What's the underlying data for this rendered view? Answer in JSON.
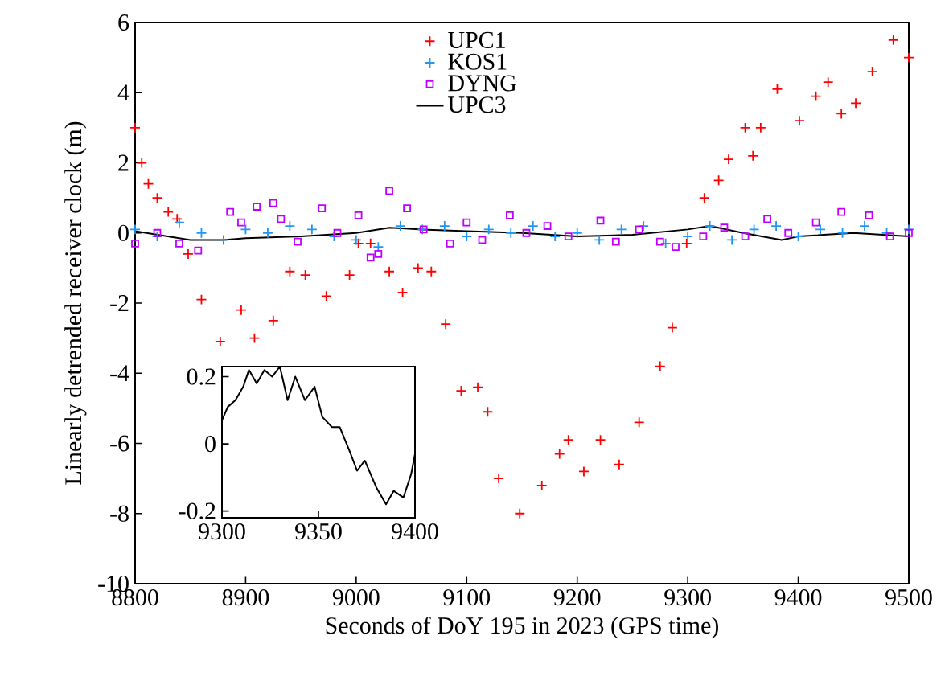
{
  "chart_data": [
    {
      "type": "scatter",
      "xlabel": "Seconds of DoY 195 in 2023 (GPS time)",
      "ylabel": "Linearly detrended receiver clock (m)",
      "xlim": [
        8800,
        9500
      ],
      "ylim": [
        -10,
        6
      ],
      "xticks": [
        8800,
        8900,
        9000,
        9100,
        9200,
        9300,
        9400,
        9500
      ],
      "yticks": [
        -10,
        -8,
        -6,
        -4,
        -2,
        0,
        2,
        4,
        6
      ],
      "legend": "top",
      "series": [
        {
          "name": "UPC1",
          "color": "#ff0000",
          "marker": "cross",
          "x": [
            8800,
            8806,
            8812,
            8820,
            8830,
            8838,
            8848,
            8860,
            8877,
            8896,
            8908,
            8925,
            8940,
            8954,
            8973,
            8994,
            9002,
            9013,
            9030,
            9042,
            9056,
            9068,
            9081,
            9095,
            9110,
            9119,
            9129,
            9148,
            9168,
            9184,
            9192,
            9206,
            9221,
            9238,
            9256,
            9275,
            9286,
            9299,
            9315,
            9328,
            9337,
            9352,
            9359,
            9366,
            9381,
            9401,
            9416,
            9427,
            9439,
            9452,
            9467,
            9486,
            9500
          ],
          "values": [
            3.0,
            2.0,
            1.4,
            1.0,
            0.6,
            0.4,
            -0.6,
            -1.9,
            -3.1,
            -2.2,
            -3.0,
            -2.5,
            -1.1,
            -1.2,
            -1.8,
            -1.2,
            -0.3,
            -0.3,
            -1.1,
            -1.7,
            -1.0,
            -1.1,
            -2.6,
            -4.5,
            -4.4,
            -5.1,
            -7.0,
            -8.0,
            -7.2,
            -6.3,
            -5.9,
            -6.8,
            -5.9,
            -6.6,
            -5.4,
            -3.8,
            -2.7,
            -0.3,
            1.0,
            1.5,
            2.1,
            3.0,
            2.2,
            3.0,
            4.1,
            3.2,
            3.9,
            4.3,
            3.4,
            3.7,
            4.6,
            5.5,
            5.0
          ]
        },
        {
          "name": "KOS1",
          "color": "#2196f3",
          "marker": "cross",
          "x": [
            8800,
            8820,
            8840,
            8860,
            8880,
            8900,
            8920,
            8940,
            8960,
            8980,
            9000,
            9020,
            9040,
            9060,
            9080,
            9100,
            9120,
            9140,
            9160,
            9180,
            9200,
            9220,
            9240,
            9260,
            9280,
            9300,
            9320,
            9340,
            9360,
            9380,
            9400,
            9420,
            9440,
            9460,
            9480,
            9500
          ],
          "values": [
            0.1,
            -0.1,
            0.3,
            0.0,
            -0.2,
            0.1,
            0.0,
            0.2,
            0.1,
            -0.1,
            -0.2,
            -0.4,
            0.2,
            0.1,
            0.2,
            -0.1,
            0.1,
            0.0,
            0.2,
            -0.1,
            0.0,
            -0.2,
            0.1,
            0.2,
            -0.3,
            -0.1,
            0.2,
            -0.2,
            0.1,
            0.2,
            -0.1,
            0.1,
            0.0,
            0.2,
            0.0,
            0.1
          ]
        },
        {
          "name": "DYNG",
          "color": "#bf00ff",
          "marker": "square",
          "x": [
            8800,
            8820,
            8840,
            8857,
            8886,
            8896,
            8910,
            8925,
            8932,
            8947,
            8969,
            8983,
            9002,
            9013,
            9020,
            9030,
            9046,
            9061,
            9085,
            9100,
            9114,
            9139,
            9154,
            9173,
            9192,
            9221,
            9235,
            9256,
            9275,
            9289,
            9314,
            9333,
            9352,
            9372,
            9391,
            9416,
            9439,
            9464,
            9483,
            9500
          ],
          "values": [
            -0.3,
            0.0,
            -0.3,
            -0.5,
            0.6,
            0.3,
            0.75,
            0.85,
            0.4,
            -0.25,
            0.7,
            0.0,
            0.5,
            -0.7,
            -0.6,
            1.2,
            0.7,
            0.1,
            -0.3,
            0.3,
            -0.2,
            0.5,
            0.0,
            0.2,
            -0.1,
            0.35,
            -0.25,
            0.1,
            -0.25,
            -0.4,
            -0.1,
            0.15,
            -0.1,
            0.4,
            0.0,
            0.3,
            0.6,
            0.5,
            -0.1,
            0.0
          ]
        },
        {
          "name": "UPC3",
          "color": "#000000",
          "type": "line",
          "marker": "none",
          "x": [
            8800,
            8850,
            8880,
            8900,
            8950,
            9000,
            9030,
            9060,
            9100,
            9150,
            9200,
            9250,
            9300,
            9320,
            9350,
            9385,
            9400,
            9450,
            9500
          ],
          "values": [
            0.05,
            -0.2,
            -0.2,
            -0.15,
            -0.1,
            0.0,
            0.15,
            0.1,
            0.05,
            0.0,
            -0.1,
            -0.05,
            0.1,
            0.2,
            0.0,
            -0.2,
            -0.1,
            0.0,
            -0.1
          ]
        }
      ]
    },
    {
      "type": "line",
      "xlim": [
        9300,
        9400
      ],
      "ylim": [
        -0.22,
        0.23
      ],
      "xticks": [
        9300,
        9350,
        9400
      ],
      "yticks": [
        -0.2,
        0,
        0.2
      ],
      "series": [
        {
          "color": "#000000",
          "x": [
            9300,
            9303,
            9307,
            9311,
            9314,
            9318,
            9322,
            9326,
            9330,
            9334,
            9338,
            9343,
            9348,
            9352,
            9357,
            9361,
            9366,
            9370,
            9374,
            9380,
            9385,
            9389,
            9394,
            9398,
            9400
          ],
          "values": [
            0.07,
            0.11,
            0.13,
            0.17,
            0.22,
            0.18,
            0.22,
            0.2,
            0.23,
            0.13,
            0.2,
            0.13,
            0.17,
            0.08,
            0.05,
            0.05,
            -0.02,
            -0.08,
            -0.05,
            -0.13,
            -0.18,
            -0.14,
            -0.16,
            -0.09,
            -0.03
          ]
        }
      ]
    }
  ]
}
